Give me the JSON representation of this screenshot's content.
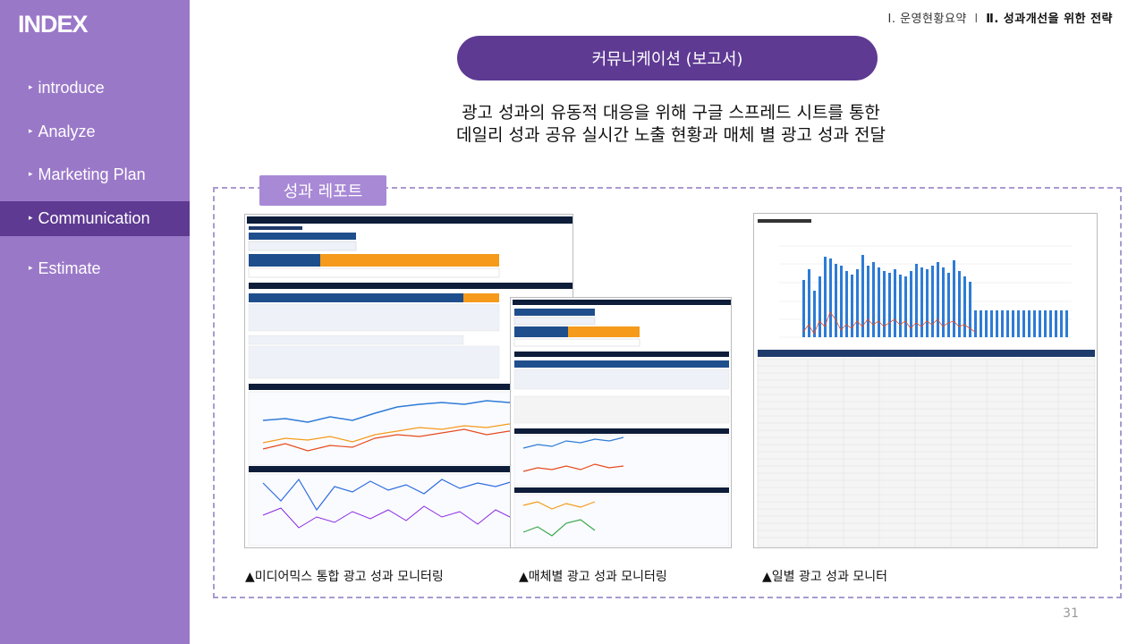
{
  "sidebar": {
    "title": "INDEX",
    "items": [
      {
        "label": "introduce"
      },
      {
        "label": "Analyze"
      },
      {
        "label": "Marketing Plan"
      },
      {
        "label": "Communication"
      },
      {
        "label": "Estimate"
      }
    ],
    "bullet": "▸",
    "active_index": 3,
    "color": "#9a78c8",
    "active_color": "#5e3a93"
  },
  "breadcrumb": {
    "section1": "Ⅰ. 운영현황요약",
    "separator": "l",
    "section2": "Ⅱ. 성과개선을 위한 전략"
  },
  "header": {
    "pill": "커뮤니케이션 (보고서)",
    "subtitle_line1": "광고 성과의 유동적 대응을 위해 구글 스프레드 시트를 통한",
    "subtitle_line2": "데일리 성과 공유 실시간 노출 현황과 매체 별 광고 성과 전달"
  },
  "report": {
    "tag": "성과 레포트",
    "captions": [
      "▲미디어믹스 통합 광고 성과 모니터링",
      "▲매체별 광고 성과 모니터링",
      "▲일별 광고 성과 모니터"
    ]
  },
  "page_number": "31"
}
